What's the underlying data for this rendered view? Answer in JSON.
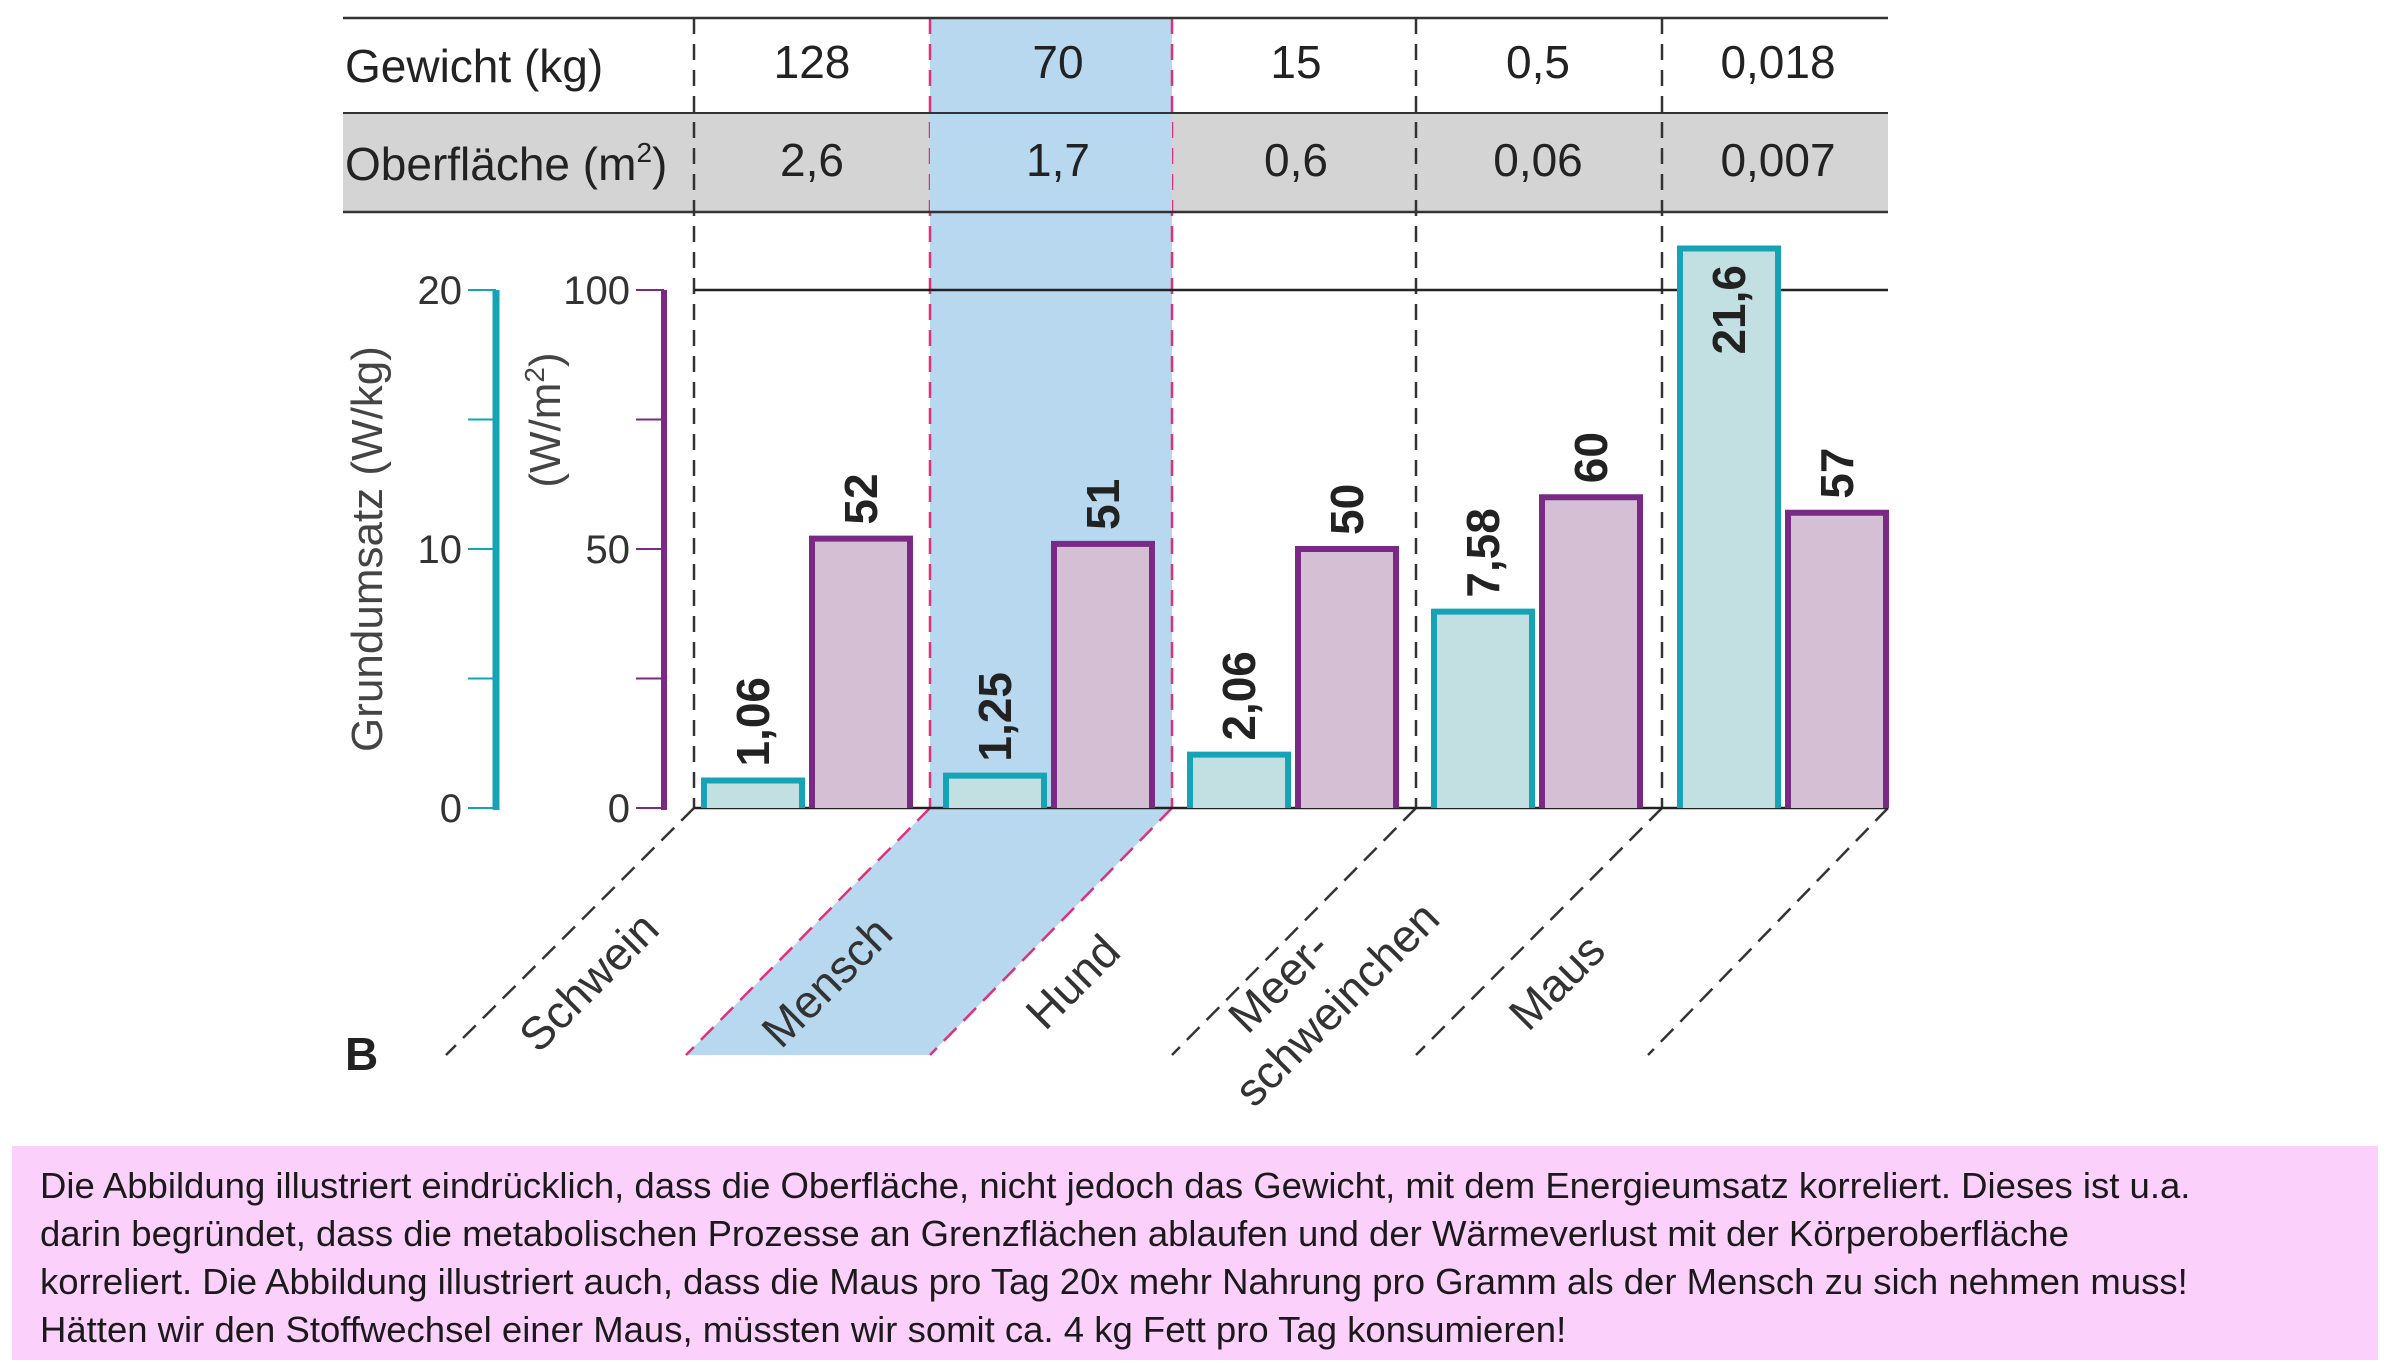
{
  "panel_label": "B",
  "table": {
    "rows": [
      {
        "label": "Gewicht (kg)",
        "values": [
          "128",
          "70",
          "15",
          "0,5",
          "0,018"
        ]
      },
      {
        "label": "Oberfläche (m",
        "superscript": "2",
        "label_end": ")",
        "values": [
          "2,6",
          "1,7",
          "0,6",
          "0,06",
          "0,007"
        ]
      }
    ]
  },
  "chart_data": {
    "type": "bar",
    "categories": [
      "Schwein",
      "Mensch",
      "Hund",
      "Meer-\nschweinchen",
      "Maus"
    ],
    "highlighted_category": "Mensch",
    "series": [
      {
        "name": "Grundumsatz (W/kg)",
        "axis": "left-teal",
        "values": [
          1.06,
          1.25,
          2.06,
          7.58,
          21.6
        ],
        "labels": [
          "1,06",
          "1,25",
          "2,06",
          "7,58",
          "21,6"
        ],
        "color": "#16a3b5",
        "fill": "#c2dfe2"
      },
      {
        "name": "(W/m²)",
        "axis": "left-purple",
        "values": [
          52,
          51,
          50,
          60,
          57
        ],
        "labels": [
          "52",
          "51",
          "50",
          "60",
          "57"
        ],
        "color": "#7a2a85",
        "fill": "#d5bfd5"
      }
    ],
    "axes": {
      "teal": {
        "label": "Grundumsatz (W/kg)",
        "ylim": [
          0,
          20
        ],
        "ticks": [
          "0",
          "10",
          "20"
        ],
        "color": "#16a3b5"
      },
      "purple": {
        "label": "(W/m",
        "label_sup": "2",
        "label_end": ")",
        "ylim": [
          0,
          100
        ],
        "ticks": [
          "0",
          "50",
          "100"
        ],
        "color": "#7a2a85"
      }
    },
    "colors": {
      "highlight": "#b7d8ef",
      "highlight_border": "#e0307a",
      "table_shade": "#d4d4d4"
    }
  },
  "caption": {
    "lines": [
      "Die Abbildung illustriert eindrücklich, dass die Oberfläche, nicht jedoch das Gewicht, mit dem Energieumsatz korreliert. Dieses ist u.a.",
      "darin begründet, dass die metabolischen Prozesse an Grenzflächen ablaufen und der Wärmeverlust mit der Körperoberfläche",
      "korreliert. Die Abbildung illustriert auch, dass die Maus pro Tag 20x mehr Nahrung pro Gramm als der Mensch zu sich nehmen muss!",
      "Hätten wir den Stoffwechsel einer Maus, müssten wir somit ca. 4 kg Fett pro Tag konsumieren!"
    ],
    "background": "#fbd0fb"
  }
}
